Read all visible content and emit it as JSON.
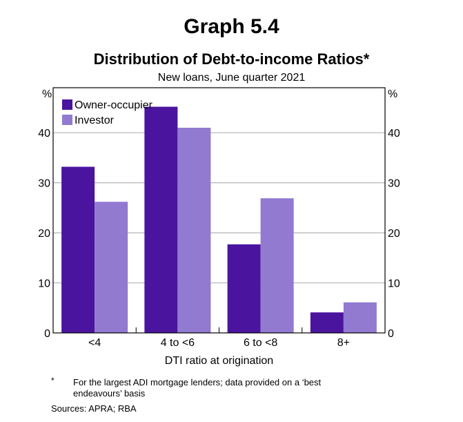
{
  "header": {
    "graph_number": "Graph 5.4",
    "title": "Distribution of Debt-to-income Ratios*",
    "subtitle": "New loans, June quarter 2021"
  },
  "chart_data": {
    "type": "bar",
    "title": "Distribution of Debt-to-income Ratios*",
    "subtitle": "New loans, June quarter 2021",
    "xlabel": "DTI ratio at origination",
    "ylabel": "%",
    "ylabel_right": "%",
    "categories": [
      "<4",
      "4 to <6",
      "6 to <8",
      "8+"
    ],
    "series": [
      {
        "name": "Owner-occupier",
        "color": "#4a149f",
        "values": [
          33.2,
          45.2,
          17.7,
          4.1
        ]
      },
      {
        "name": "Investor",
        "color": "#917ad0",
        "values": [
          26.2,
          41.0,
          26.9,
          6.1
        ]
      }
    ],
    "ylim": [
      0,
      49
    ],
    "yticks": [
      0,
      10,
      20,
      30,
      40
    ],
    "grid": true,
    "legend_position": "top-left"
  },
  "footnote": {
    "marker": "*",
    "text": "For the largest ADI mortgage lenders; data provided on a ‘best endeavours’ basis"
  },
  "sources": "Sources: APRA; RBA"
}
